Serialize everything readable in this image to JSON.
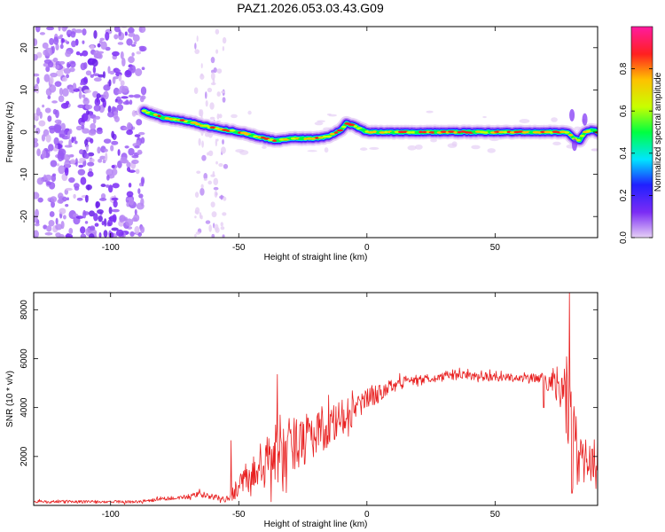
{
  "title": "PAZ1.2026.053.03.43.G09",
  "chart_data": [
    {
      "type": "heatmap",
      "title": "PAZ1.2026.053.03.43.G09",
      "xlabel": "Height of straight line (km)",
      "ylabel": "Frequency (Hz)",
      "xlim": [
        -130,
        90
      ],
      "ylim": [
        -25,
        25
      ],
      "xticks": [
        -100,
        -50,
        0,
        50
      ],
      "yticks": [
        -20,
        -10,
        0,
        10,
        20
      ],
      "xtick_labels": [
        "-100",
        "-50",
        "0",
        "50"
      ],
      "ytick_labels": [
        "-20",
        "-10",
        "0",
        "10",
        "20"
      ],
      "colorbar": {
        "label": "Normalized spectral amplitude",
        "range": [
          0,
          1
        ],
        "ticks": [
          0.0,
          0.2,
          0.4,
          0.6,
          0.8
        ],
        "tick_labels": [
          "0.0",
          "0.2",
          "0.4",
          "0.6",
          "0.8"
        ],
        "colors": [
          "#e6d0f5",
          "#7b2cf5",
          "#2020ff",
          "#00e5ff",
          "#00ff40",
          "#c8ff00",
          "#ffc000",
          "#ff2020",
          "#ff1aa0"
        ]
      },
      "ridge": {
        "description": "main signal ridge",
        "x": [
          -87,
          -80,
          -70,
          -60,
          -50,
          -40,
          -35,
          -30,
          -20,
          -15,
          -10,
          -8,
          -5,
          0,
          10,
          20,
          30,
          40,
          50,
          60,
          70,
          78,
          81,
          83,
          85,
          88,
          90
        ],
        "y": [
          5,
          3.5,
          2.5,
          1,
          0,
          -1.5,
          -2,
          -1.5,
          -1.5,
          -1,
          0.5,
          2,
          1.5,
          0,
          0,
          0,
          0,
          0,
          0,
          0,
          0,
          0,
          -1.5,
          -2,
          0,
          0.5,
          0
        ]
      },
      "noise_region": {
        "x_from": -130,
        "x_to": -87,
        "band_x_from": -67,
        "band_x_to": -55
      }
    },
    {
      "type": "line",
      "xlabel": "Height of straight line (km)",
      "ylabel": "SNR (10 * v/v)",
      "xlim": [
        -130,
        90
      ],
      "ylim": [
        0,
        8700
      ],
      "xticks": [
        -100,
        -50,
        0,
        50
      ],
      "yticks": [
        2000,
        4000,
        6000,
        8000
      ],
      "xtick_labels": [
        "-100",
        "-50",
        "0",
        "50"
      ],
      "ytick_labels": [
        "2000",
        "4000",
        "6000",
        "8000"
      ],
      "color": "#e82020",
      "envelope_x": [
        -130,
        -90,
        -80,
        -70,
        -65,
        -60,
        -55,
        -50,
        -45,
        -40,
        -35,
        -30,
        -25,
        -20,
        -15,
        -10,
        -5,
        0,
        5,
        10,
        15,
        20,
        25,
        30,
        35,
        40,
        45,
        50,
        55,
        60,
        65,
        68,
        70,
        75,
        78,
        80,
        82,
        85,
        88,
        90
      ],
      "envelope_y": [
        150,
        150,
        250,
        350,
        450,
        350,
        200,
        800,
        1200,
        1700,
        2100,
        2400,
        2700,
        3000,
        3200,
        3500,
        3900,
        4300,
        4600,
        4900,
        5050,
        5150,
        5200,
        5250,
        5300,
        5300,
        5250,
        5250,
        5250,
        5200,
        5200,
        5200,
        5100,
        5000,
        4500,
        3000,
        1800,
        1800,
        1800,
        1800
      ],
      "jitter_amp": [
        60,
        60,
        80,
        100,
        130,
        120,
        120,
        500,
        900,
        1100,
        1300,
        1200,
        1100,
        1000,
        900,
        800,
        600,
        500,
        350,
        300,
        250,
        200,
        180,
        180,
        180,
        180,
        180,
        180,
        180,
        180,
        180,
        200,
        400,
        800,
        1800,
        2500,
        1500,
        900,
        700,
        600
      ],
      "peaks": [
        {
          "x": -53,
          "y": 2650
        },
        {
          "x": -35,
          "y": 5350
        },
        {
          "x": 69,
          "y": 4000
        },
        {
          "x": 79,
          "y": 8700
        },
        {
          "x": 80,
          "y": 500
        }
      ]
    }
  ]
}
